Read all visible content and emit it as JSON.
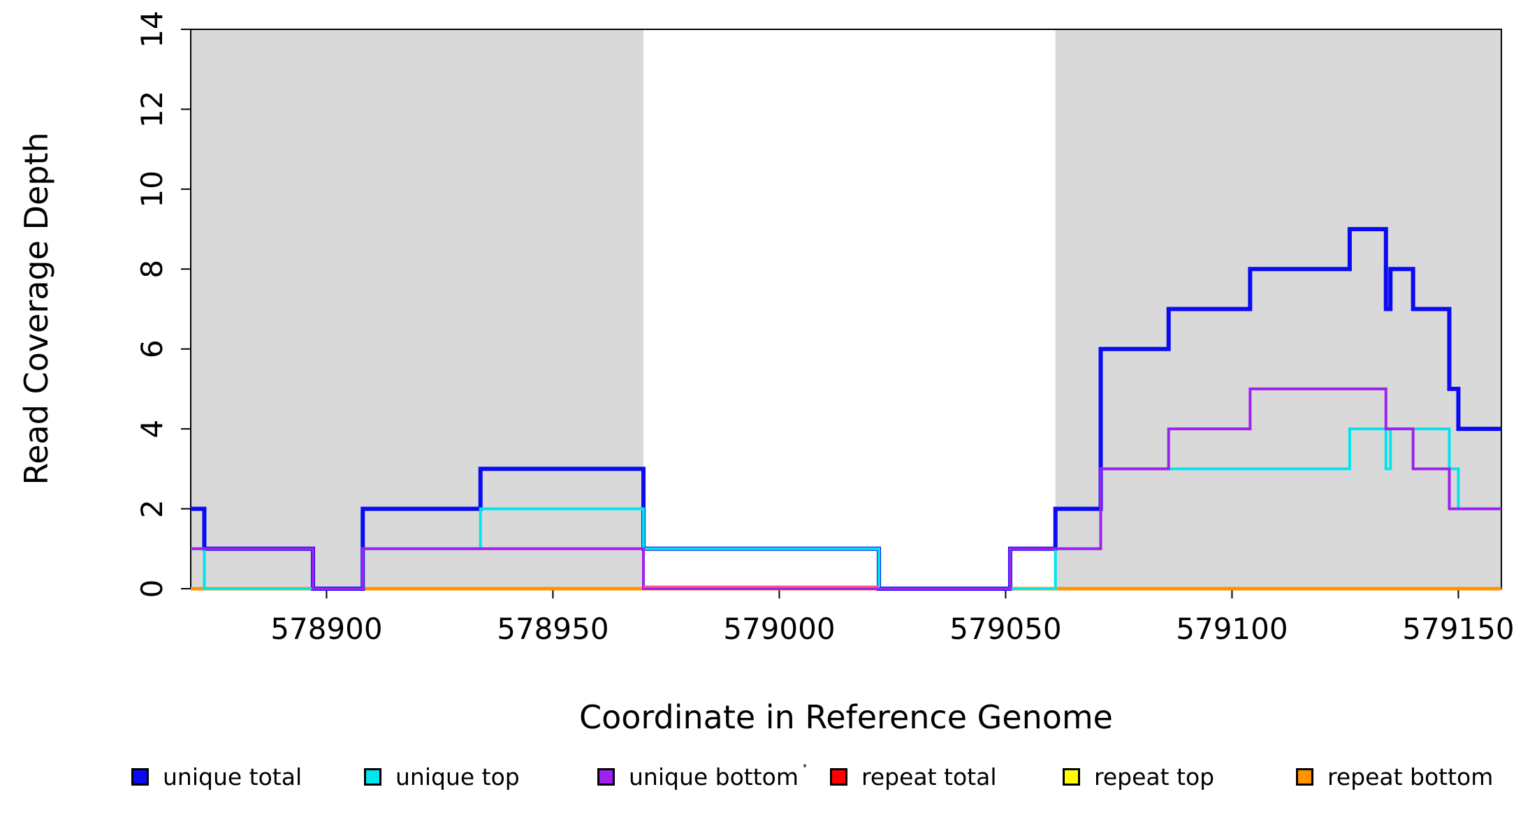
{
  "chart_data": {
    "type": "line",
    "subtype": "step-post",
    "title": "",
    "xlabel": "Coordinate in Reference Genome",
    "ylabel": "Read Coverage Depth",
    "xlim": [
      578870,
      579159.5
    ],
    "ylim": [
      0,
      14
    ],
    "x_ticks": [
      578900,
      578950,
      579000,
      579050,
      579100,
      579150
    ],
    "y_ticks": [
      0,
      2,
      4,
      6,
      8,
      10,
      12,
      14
    ],
    "grid": false,
    "legend_position": "bottom",
    "background_color": "#ffffff",
    "shaded_regions": [
      {
        "name": "repeat-region-left",
        "from": 578870,
        "to": 578970,
        "color": "#d9d9d9"
      },
      {
        "name": "repeat-region-right",
        "from": 579061,
        "to": 579159.5,
        "color": "#d9d9d9"
      }
    ],
    "series": [
      {
        "name": "unique total",
        "color": "#0b0bf2",
        "line_width": 6,
        "steps": [
          [
            578870,
            2
          ],
          [
            578873,
            1
          ],
          [
            578897,
            0
          ],
          [
            578908,
            2
          ],
          [
            578934,
            3
          ],
          [
            578970,
            1
          ],
          [
            579022,
            0
          ],
          [
            579051,
            1
          ],
          [
            579061,
            2
          ],
          [
            579071,
            6
          ],
          [
            579086,
            7
          ],
          [
            579104,
            8
          ],
          [
            579126,
            9
          ],
          [
            579134,
            7
          ],
          [
            579135,
            8
          ],
          [
            579140,
            7
          ],
          [
            579148,
            5
          ],
          [
            579150,
            4
          ]
        ]
      },
      {
        "name": "unique top",
        "color": "#00e5ee",
        "line_width": 4,
        "steps": [
          [
            578870,
            1
          ],
          [
            578873,
            0
          ],
          [
            578908,
            1
          ],
          [
            578934,
            2
          ],
          [
            578970,
            1
          ],
          [
            579022,
            0
          ],
          [
            579061,
            1
          ],
          [
            579071,
            3
          ],
          [
            579126,
            4
          ],
          [
            579134,
            3
          ],
          [
            579135,
            4
          ],
          [
            579148,
            3
          ],
          [
            579150,
            2
          ]
        ]
      },
      {
        "name": "unique bottom",
        "color": "#a020f0",
        "line_width": 4,
        "steps": [
          [
            578870,
            1
          ],
          [
            578897,
            0
          ],
          [
            578908,
            1
          ],
          [
            578970,
            0
          ],
          [
            579051,
            1
          ],
          [
            579071,
            3
          ],
          [
            579086,
            4
          ],
          [
            579104,
            5
          ],
          [
            579134,
            4
          ],
          [
            579140,
            3
          ],
          [
            579148,
            2
          ]
        ]
      },
      {
        "name": "repeat total",
        "color": "#ff0000",
        "line_width": 4,
        "steps": [
          [
            578870,
            0
          ]
        ]
      },
      {
        "name": "repeat top",
        "color": "#ffff00",
        "line_width": 4,
        "steps": [
          [
            578870,
            0
          ]
        ]
      },
      {
        "name": "repeat bottom",
        "color": "#ff9300",
        "line_width": 5,
        "steps": [
          [
            578870,
            0
          ]
        ]
      }
    ],
    "baseline_visible_red_segment": {
      "from": 578970,
      "to": 579022,
      "color": "#ff5590"
    }
  },
  "legend": {
    "artifact_dot": "."
  }
}
